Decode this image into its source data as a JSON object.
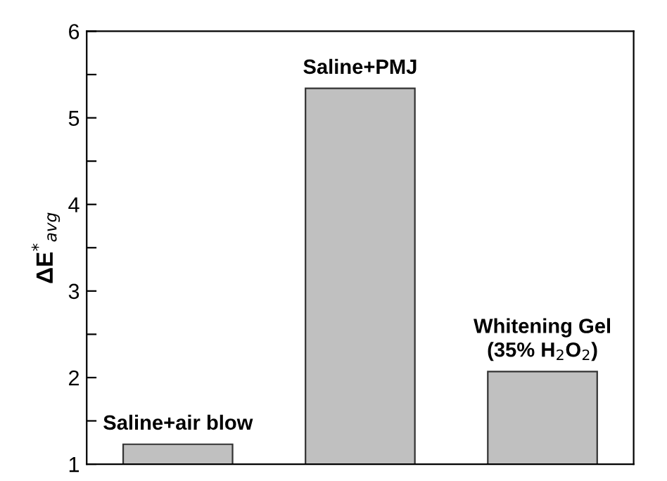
{
  "chart_data": {
    "type": "bar",
    "ylabel": "ΔE$^{*}$$_{avg}$",
    "categories": [
      "Saline+air blow",
      "Saline+PMJ",
      "Whitening Gel\n(35% H$_{2}$O$_{2}$)"
    ],
    "values": [
      1.23,
      5.34,
      2.07
    ],
    "color": "#c0c0c0",
    "ylim": [
      1,
      6
    ],
    "yticks": [
      1,
      {
        "value": 1.5,
        "label": null
      },
      2,
      {
        "value": 2.5,
        "label": null
      },
      3,
      {
        "value": 3.5,
        "label": null
      },
      4,
      {
        "value": 4.5,
        "label": null
      },
      5,
      {
        "value": 5.5,
        "label": null
      },
      6
    ],
    "grid": false,
    "legend": false
  }
}
